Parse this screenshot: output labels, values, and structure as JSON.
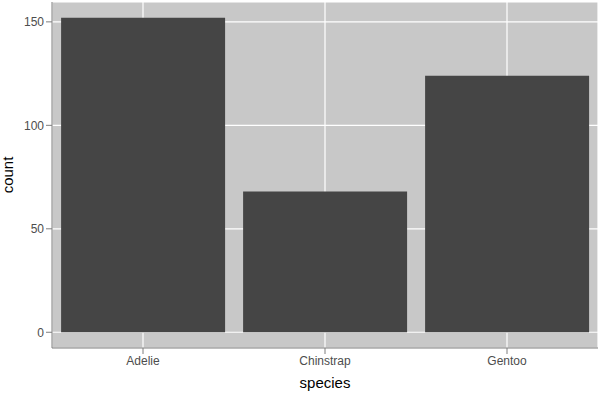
{
  "chart_data": {
    "type": "bar",
    "x_label": "species",
    "y_label": "count",
    "categories": [
      "Adelie",
      "Chinstrap",
      "Gentoo"
    ],
    "values": [
      152,
      68,
      124
    ],
    "color": "#454545",
    "ylim": [
      -7.6,
      159.6
    ],
    "yticks": [
      0,
      50,
      100,
      150
    ],
    "grid": true
  }
}
